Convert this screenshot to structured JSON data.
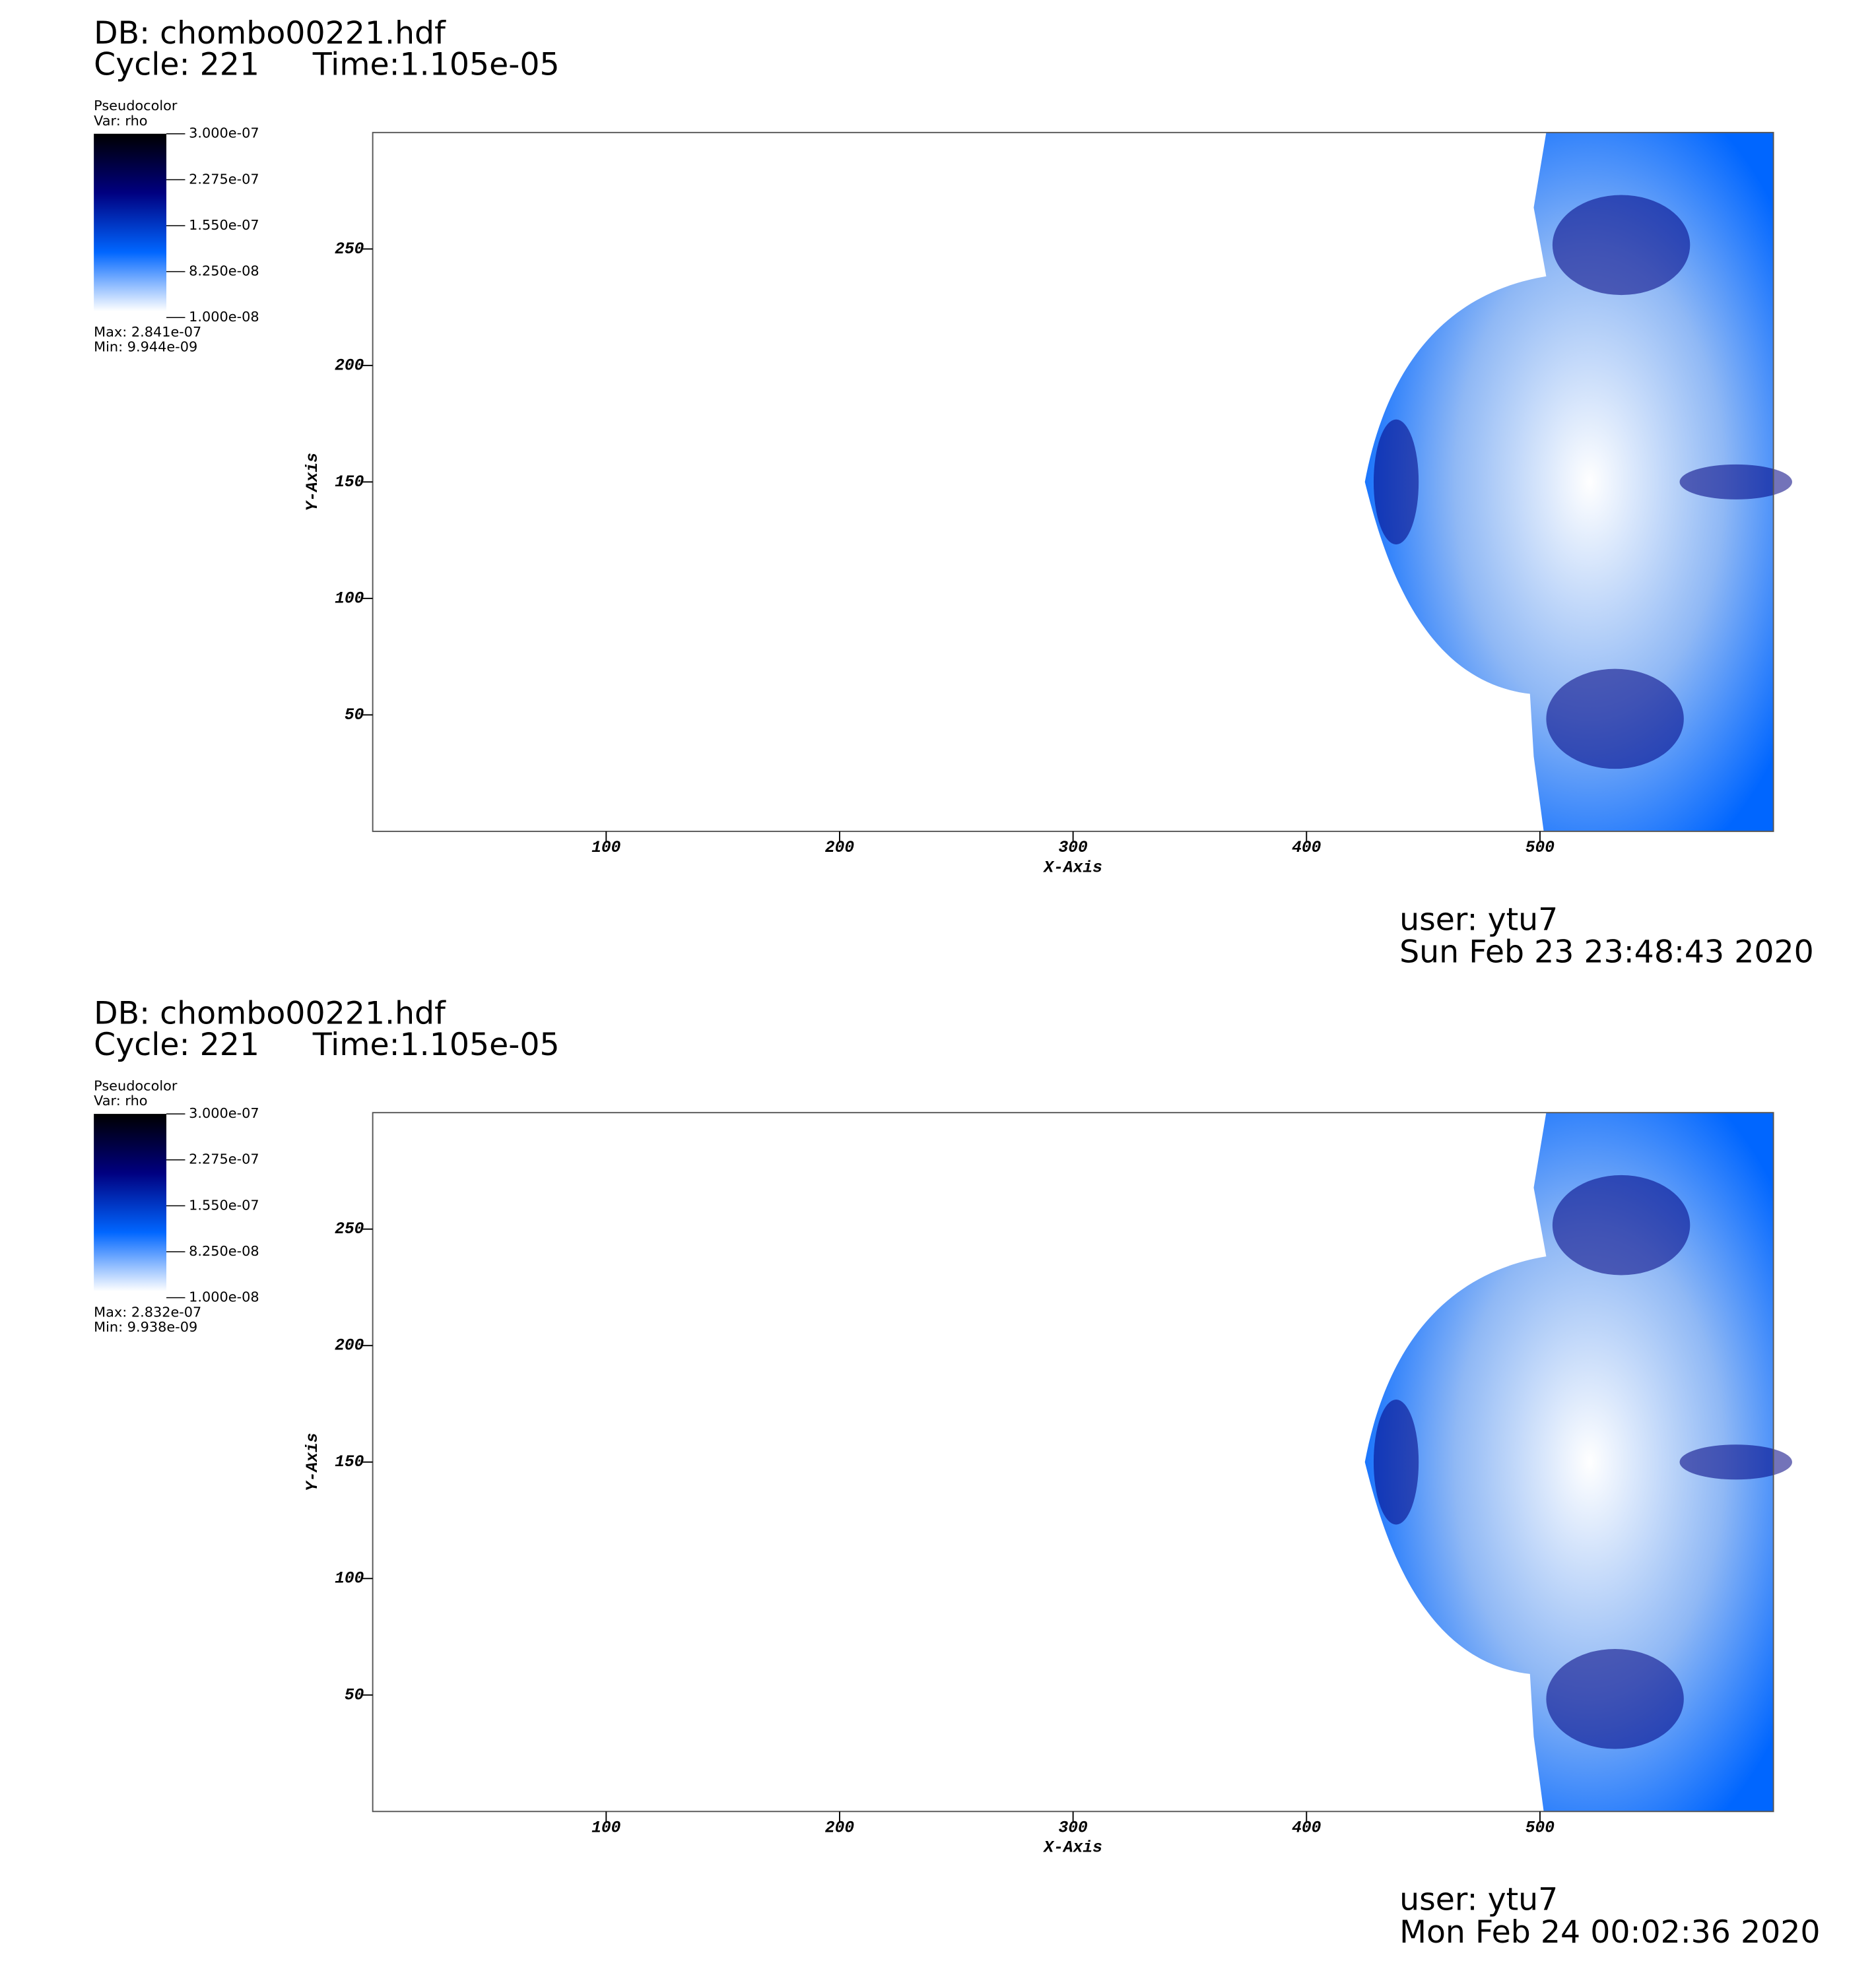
{
  "chart_data": [
    {
      "type": "pseudocolor",
      "title": "DB: chombo00221.hdf",
      "cycle": "Cycle: 221",
      "time": "Time:1.105e-05",
      "legend_title": "Pseudocolor",
      "legend_var": "Var: rho",
      "colorbar_ticks": [
        {
          "value": 3e-07,
          "label": "3.000e-07"
        },
        {
          "value": 2.275e-07,
          "label": "2.275e-07"
        },
        {
          "value": 1.55e-07,
          "label": "1.550e-07"
        },
        {
          "value": 8.25e-08,
          "label": "8.250e-08"
        },
        {
          "value": 1e-08,
          "label": "1.000e-08"
        }
      ],
      "max_label": "Max:  2.841e-07",
      "min_label": "Min:  9.944e-09",
      "xlabel": "X-Axis",
      "ylabel": "Y-Axis",
      "xlim": [
        0,
        600
      ],
      "xticks": [
        100,
        200,
        300,
        400,
        500
      ],
      "ylim": [
        0,
        300
      ],
      "yticks": [
        50,
        100,
        150,
        200,
        250
      ],
      "colormap": [
        "#ffffff",
        "#0066ff",
        "#000080",
        "#000000"
      ],
      "user": "user: ytu7",
      "date": "Sun Feb 23 23:48:43 2020"
    },
    {
      "type": "pseudocolor",
      "title": "DB: chombo00221.hdf",
      "cycle": "Cycle: 221",
      "time": "Time:1.105e-05",
      "legend_title": "Pseudocolor",
      "legend_var": "Var: rho",
      "colorbar_ticks": [
        {
          "value": 3e-07,
          "label": "3.000e-07"
        },
        {
          "value": 2.275e-07,
          "label": "2.275e-07"
        },
        {
          "value": 1.55e-07,
          "label": "1.550e-07"
        },
        {
          "value": 8.25e-08,
          "label": "8.250e-08"
        },
        {
          "value": 1e-08,
          "label": "1.000e-08"
        }
      ],
      "max_label": "Max:  2.832e-07",
      "min_label": "Min:  9.938e-09",
      "xlabel": "X-Axis",
      "ylabel": "Y-Axis",
      "xlim": [
        0,
        600
      ],
      "xticks": [
        100,
        200,
        300,
        400,
        500
      ],
      "ylim": [
        0,
        300
      ],
      "yticks": [
        50,
        100,
        150,
        200,
        250
      ],
      "colormap": [
        "#ffffff",
        "#0066ff",
        "#000080",
        "#000000"
      ],
      "user": "user: ytu7",
      "date": "Mon Feb 24 00:02:36 2020"
    }
  ]
}
